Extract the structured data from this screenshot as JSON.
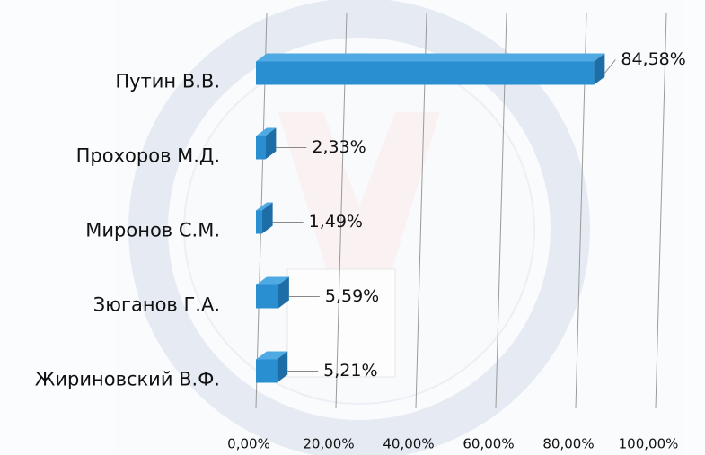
{
  "chart_data": {
    "type": "bar",
    "orientation": "horizontal",
    "categories": [
      "Путин В.В.",
      "Прохоров М.Д.",
      "Миронов С.М.",
      "Зюганов Г.А.",
      "Жириновский В.Ф."
    ],
    "values": [
      84.58,
      2.33,
      1.49,
      5.59,
      5.21
    ],
    "value_labels": [
      "84,58%",
      "2,33%",
      "1,49%",
      "5,59%",
      "5,21%"
    ],
    "color": "#2a8fd0",
    "xlim": [
      0,
      100
    ],
    "xticks": [
      {
        "value": 0,
        "label": "0,00%"
      },
      {
        "value": 20,
        "label": "20,00%"
      },
      {
        "value": 40,
        "label": "40,00%"
      },
      {
        "value": 60,
        "label": "60,00%"
      },
      {
        "value": 80,
        "label": "80,00%"
      },
      {
        "value": 100,
        "label": "100,00%"
      }
    ],
    "grid": true
  }
}
